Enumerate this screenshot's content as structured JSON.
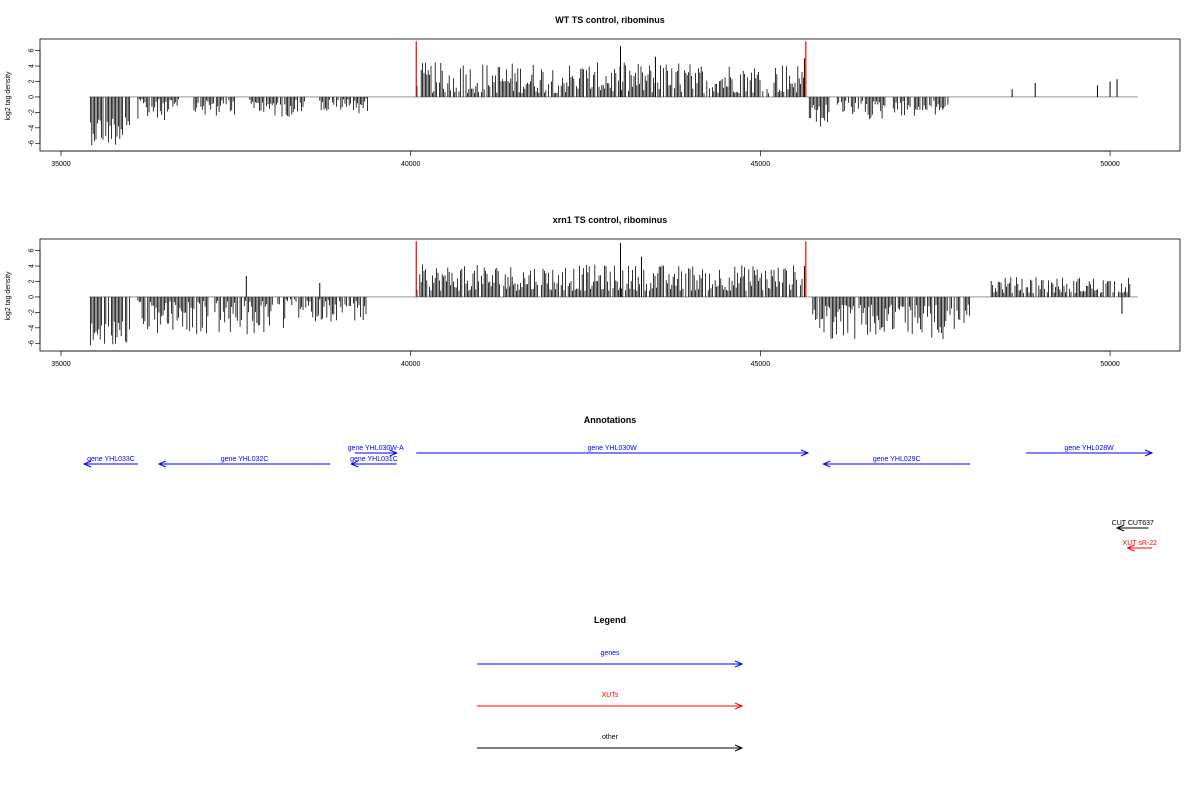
{
  "chart_data": [
    {
      "type": "bar",
      "title": "WT TS control, ribominus",
      "ylabel": "log2 tag density",
      "xlim": [
        34700,
        51000
      ],
      "ylim": [
        -7,
        7.5
      ],
      "xticks": [
        35000,
        40000,
        45000,
        50000
      ],
      "yticks": [
        6,
        4,
        2,
        0,
        -2,
        -4,
        -6
      ],
      "baseline_range": [
        35400,
        50400
      ],
      "markers": [
        40080,
        45650
      ],
      "marker_color": "#ff0000",
      "bar_color": "#000000",
      "segments": [
        {
          "from": 35420,
          "to": 35990,
          "dir": "down",
          "min": 2.5,
          "max": 6.3
        },
        {
          "from": 36100,
          "to": 36700,
          "dir": "down",
          "min": 0.3,
          "max": 3.0
        },
        {
          "from": 36900,
          "to": 37500,
          "dir": "down",
          "min": 0.3,
          "max": 2.5
        },
        {
          "from": 37700,
          "to": 38500,
          "dir": "down",
          "min": 0.3,
          "max": 2.6
        },
        {
          "from": 38700,
          "to": 39400,
          "dir": "down",
          "min": 0.2,
          "max": 2.2
        },
        {
          "from": 40090,
          "to": 45630,
          "dir": "up",
          "min": 0.5,
          "max": 4.5
        },
        {
          "from": 45700,
          "to": 46000,
          "dir": "down",
          "min": 1.0,
          "max": 4.0
        },
        {
          "from": 46100,
          "to": 46800,
          "dir": "down",
          "min": 0.5,
          "max": 3.0
        },
        {
          "from": 46900,
          "to": 47700,
          "dir": "down",
          "min": 0.5,
          "max": 2.5
        }
      ],
      "spikes": [
        {
          "x": 43000,
          "y": 6.6
        },
        {
          "x": 43500,
          "y": 5.2
        },
        {
          "x": 45630,
          "y": 5.0
        },
        {
          "x": 48600,
          "y": 1.0
        },
        {
          "x": 48930,
          "y": 1.8
        },
        {
          "x": 49820,
          "y": 1.5
        },
        {
          "x": 50000,
          "y": 2.0
        },
        {
          "x": 50100,
          "y": 2.3
        }
      ]
    },
    {
      "type": "bar",
      "title": "xrn1 TS control, ribominus",
      "ylabel": "log2 tag density",
      "xlim": [
        34700,
        51000
      ],
      "ylim": [
        -7,
        7.5
      ],
      "xticks": [
        35000,
        40000,
        45000,
        50000
      ],
      "yticks": [
        6,
        4,
        2,
        0,
        -2,
        -4,
        -6
      ],
      "baseline_range": [
        35400,
        50400
      ],
      "markers": [
        40080,
        45650
      ],
      "marker_color": "#ff0000",
      "bar_color": "#000000",
      "segments": [
        {
          "from": 35420,
          "to": 36000,
          "dir": "down",
          "min": 3.0,
          "max": 6.5
        },
        {
          "from": 36100,
          "to": 38200,
          "dir": "down",
          "min": 0.5,
          "max": 5.0
        },
        {
          "from": 38200,
          "to": 39400,
          "dir": "down",
          "min": 0.3,
          "max": 3.2
        },
        {
          "from": 40090,
          "to": 45630,
          "dir": "up",
          "min": 0.8,
          "max": 4.2
        },
        {
          "from": 45750,
          "to": 48000,
          "dir": "down",
          "min": 1.0,
          "max": 5.5
        },
        {
          "from": 48300,
          "to": 50300,
          "dir": "up",
          "min": 0.5,
          "max": 2.6
        }
      ],
      "spikes": [
        {
          "x": 37650,
          "y": 2.7
        },
        {
          "x": 38700,
          "y": 1.8
        },
        {
          "x": 43000,
          "y": 7.0
        },
        {
          "x": 43300,
          "y": 5.2
        },
        {
          "x": 45630,
          "y": 4.0
        },
        {
          "x": 50170,
          "y": -2.2
        }
      ]
    }
  ],
  "annotations": {
    "title": "Annotations",
    "xlim": [
      34700,
      51000
    ],
    "features": [
      {
        "label": "gene YHL033C",
        "start": 35330,
        "end": 36100,
        "strand": "-",
        "row": 1,
        "color": "#0000ff"
      },
      {
        "label": "gene YHL032C",
        "start": 36400,
        "end": 38850,
        "strand": "-",
        "row": 1,
        "color": "#0000ff"
      },
      {
        "label": "gene YHL031C",
        "start": 39150,
        "end": 39800,
        "strand": "-",
        "row": 1,
        "color": "#0000ff"
      },
      {
        "label": "gene YHL030W-A",
        "start": 39200,
        "end": 39800,
        "strand": "+",
        "row": 0,
        "color": "#0000ff"
      },
      {
        "label": "gene YHL030W",
        "start": 40080,
        "end": 45680,
        "strand": "+",
        "row": 0,
        "color": "#0000ff"
      },
      {
        "label": "gene YHL029C",
        "start": 45900,
        "end": 48000,
        "strand": "-",
        "row": 1,
        "color": "#0000ff"
      },
      {
        "label": "gene YHL028W",
        "start": 48800,
        "end": 50600,
        "strand": "+",
        "row": 0,
        "color": "#0000ff"
      },
      {
        "label": "CUT CUT637",
        "start": 50100,
        "end": 50550,
        "strand": "-",
        "row": 2,
        "color": "#000000"
      },
      {
        "label": "XUT sR-22",
        "start": 50250,
        "end": 50600,
        "strand": "-",
        "row": 3,
        "color": "#ff0000"
      }
    ]
  },
  "legend": {
    "title": "Legend",
    "items": [
      {
        "label": "genes",
        "color": "#0000ff"
      },
      {
        "label": "XUTs",
        "color": "#ff0000"
      },
      {
        "label": "other",
        "color": "#000000"
      }
    ]
  }
}
